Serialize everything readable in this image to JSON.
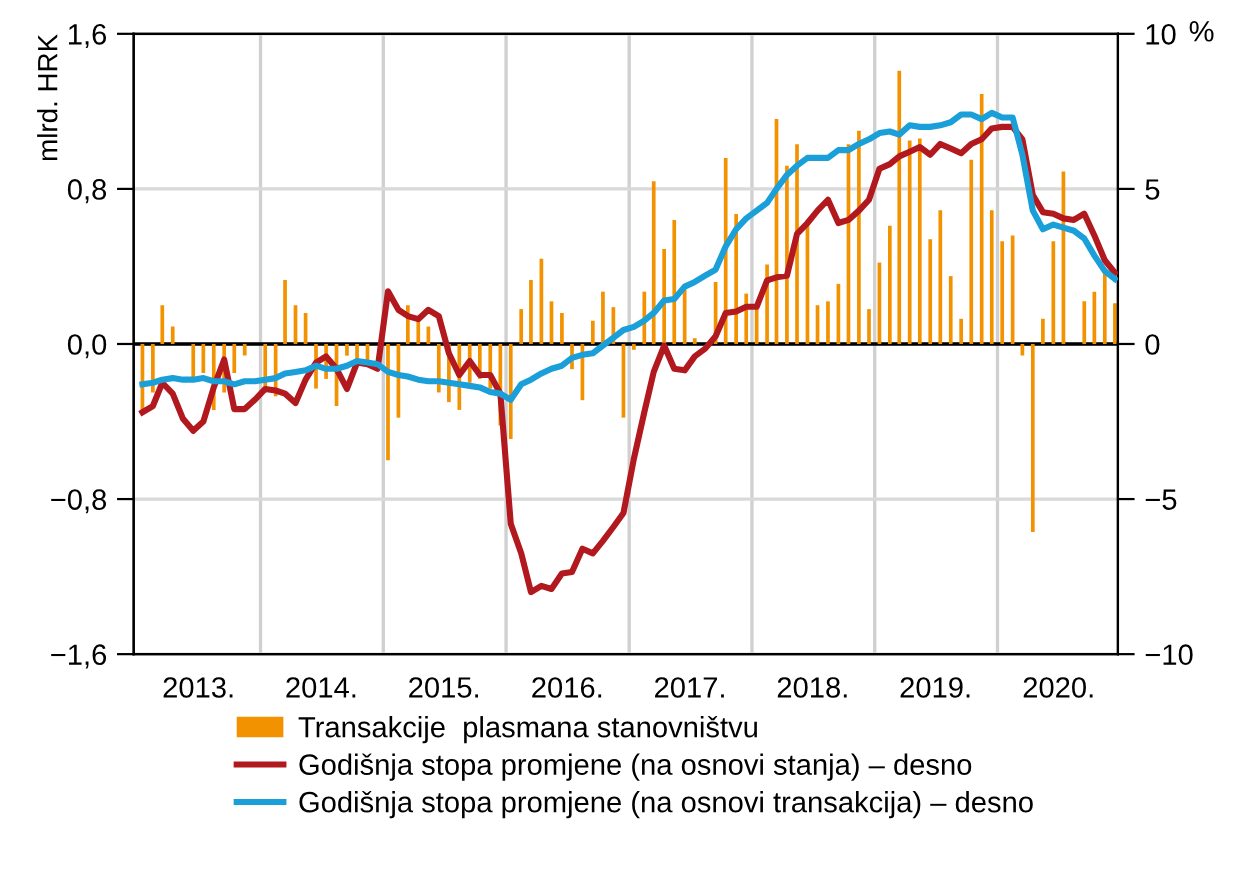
{
  "chart_data": {
    "type": "bar",
    "ylabel": "mlrd. HRK",
    "y2label": "%",
    "x": [
      "2013-01-15",
      "2013-02-15",
      "2013-03-15",
      "2013-04-15",
      "2013-05-15",
      "2013-06-15",
      "2013-07-15",
      "2013-08-15",
      "2013-09-15",
      "2013-10-15",
      "2013-11-15",
      "2013-12-15",
      "2014-01-15",
      "2014-02-15",
      "2014-03-15",
      "2014-04-15",
      "2014-05-15",
      "2014-06-15",
      "2014-07-15",
      "2014-08-15",
      "2014-09-15",
      "2014-10-15",
      "2014-11-15",
      "2014-12-15",
      "2015-01-15",
      "2015-02-15",
      "2015-03-15",
      "2015-04-15",
      "2015-05-15",
      "2015-06-15",
      "2015-07-15",
      "2015-08-15",
      "2015-09-15",
      "2015-10-15",
      "2015-11-15",
      "2015-12-15",
      "2016-01-15",
      "2016-02-15",
      "2016-03-15",
      "2016-04-15",
      "2016-05-15",
      "2016-06-15",
      "2016-07-15",
      "2016-08-15",
      "2016-09-15",
      "2016-10-15",
      "2016-11-15",
      "2016-12-15",
      "2017-01-15",
      "2017-02-15",
      "2017-03-15",
      "2017-04-15",
      "2017-05-15",
      "2017-06-15",
      "2017-07-15",
      "2017-08-15",
      "2017-09-15",
      "2017-10-15",
      "2017-11-15",
      "2017-12-15",
      "2018-01-15",
      "2018-02-15",
      "2018-03-15",
      "2018-04-15",
      "2018-05-15",
      "2018-06-15",
      "2018-07-15",
      "2018-08-15",
      "2018-09-15",
      "2018-10-15",
      "2018-11-15",
      "2018-12-15",
      "2019-01-15",
      "2019-02-15",
      "2019-03-15",
      "2019-04-15",
      "2019-05-15",
      "2019-06-15",
      "2019-07-15",
      "2019-08-15",
      "2019-09-15",
      "2019-10-15",
      "2019-11-15",
      "2019-12-15",
      "2020-01-15",
      "2020-02-15",
      "2020-03-15",
      "2020-04-15",
      "2020-05-15",
      "2020-06-15",
      "2020-07-15",
      "2020-08-15",
      "2020-09-15",
      "2020-10-15",
      "2020-11-15",
      "2020-12-15"
    ],
    "series": [
      {
        "name": "Transakcije  plasmana stanovništvu",
        "color": "#f39200",
        "values": [
          -0.34,
          -0.25,
          0.2,
          0.09,
          0,
          -0.17,
          -0.15,
          -0.34,
          -0.25,
          -0.15,
          -0.06,
          0,
          -0.25,
          -0.27,
          0.33,
          0.2,
          0.16,
          -0.23,
          -0.18,
          -0.32,
          -0.06,
          -0.1,
          -0.1,
          null,
          -0.6,
          -0.38,
          0.2,
          0.13,
          0.09,
          -0.25,
          -0.3,
          -0.34,
          -0.2,
          -0.18,
          -0.23,
          -0.42,
          -0.49,
          0.18,
          0.33,
          0.44,
          0.22,
          0.16,
          -0.13,
          -0.29,
          0.12,
          0.27,
          0.19,
          -0.38,
          -0.03,
          0.27,
          0.84,
          0.49,
          0.64,
          0.29,
          0.03,
          null,
          0.32,
          0.96,
          0.67,
          0.26,
          0.19,
          0.41,
          1.16,
          0.92,
          1.03,
          0.61,
          0.2,
          0.22,
          0.31,
          1.03,
          1.1,
          0.18,
          0.42,
          0.61,
          1.41,
          1.05,
          1.06,
          0.54,
          0.69,
          0.35,
          0.13,
          0.95,
          1.29,
          0.69,
          0.53,
          0.56,
          -0.06,
          -0.97,
          0.13,
          0.53,
          0.89,
          0,
          0.22,
          0.27,
          0.39,
          0.21
        ]
      },
      {
        "name": "Godišnja stopa promjene (na osnovi stanja) – desno",
        "type": "line",
        "axis": "y2",
        "color": "#b2191f",
        "values": [
          -2.2,
          -2.0,
          -1.25,
          -1.6,
          -2.4,
          -2.8,
          -2.5,
          -1.4,
          -0.5,
          -2.1,
          -2.1,
          -1.8,
          -1.45,
          -1.5,
          -1.6,
          -1.9,
          -1.15,
          -0.6,
          -0.4,
          -0.8,
          -1.45,
          -0.6,
          -0.65,
          -0.8,
          1.7,
          1.1,
          0.9,
          0.8,
          1.1,
          0.9,
          -0.3,
          -1.0,
          -0.55,
          -1.0,
          -1.0,
          -1.6,
          -5.8,
          -6.75,
          -8.0,
          -7.8,
          -7.9,
          -7.4,
          -7.35,
          -6.6,
          -6.75,
          -6.35,
          -5.9,
          -5.45,
          -3.7,
          -2.2,
          -0.9,
          -0.05,
          -0.8,
          -0.85,
          -0.4,
          -0.15,
          0.25,
          1.0,
          1.05,
          1.2,
          1.2,
          2.05,
          2.15,
          2.2,
          3.55,
          3.9,
          4.3,
          4.65,
          3.9,
          4.0,
          4.3,
          4.65,
          5.65,
          5.8,
          6.05,
          6.2,
          6.35,
          6.1,
          6.45,
          6.3,
          6.15,
          6.45,
          6.6,
          6.95,
          7.0,
          7.0,
          6.6,
          4.8,
          4.25,
          4.2,
          4.05,
          4.0,
          4.2,
          3.5,
          2.7,
          2.3
        ]
      },
      {
        "name": "Godišnja stopa promjene (na osnovi transakcija) – desno",
        "type": "line",
        "axis": "y2",
        "color": "#1a9fd9",
        "values": [
          -1.3,
          -1.25,
          -1.15,
          -1.1,
          -1.15,
          -1.15,
          -1.1,
          -1.2,
          -1.2,
          -1.3,
          -1.2,
          -1.2,
          -1.15,
          -1.1,
          -0.95,
          -0.9,
          -0.85,
          -0.7,
          -0.8,
          -0.8,
          -0.7,
          -0.55,
          -0.6,
          -0.65,
          -0.9,
          -1.0,
          -1.05,
          -1.15,
          -1.2,
          -1.2,
          -1.25,
          -1.3,
          -1.35,
          -1.4,
          -1.55,
          -1.6,
          -1.8,
          -1.3,
          -1.15,
          -0.95,
          -0.8,
          -0.7,
          -0.45,
          -0.35,
          -0.3,
          -0.05,
          0.2,
          0.45,
          0.55,
          0.75,
          1.0,
          1.4,
          1.45,
          1.85,
          2.0,
          2.2,
          2.4,
          3.15,
          3.7,
          4.05,
          4.3,
          4.55,
          5.0,
          5.45,
          5.75,
          6.0,
          6.0,
          6.0,
          6.25,
          6.25,
          6.45,
          6.6,
          6.8,
          6.85,
          6.75,
          7.05,
          7.0,
          7.0,
          7.05,
          7.15,
          7.4,
          7.4,
          7.25,
          7.45,
          7.3,
          7.3,
          6.1,
          4.3,
          3.7,
          3.85,
          3.75,
          3.65,
          3.4,
          2.85,
          2.35,
          2.1
        ]
      }
    ],
    "xlim": [
      "2012-12-20",
      "2020-12-24"
    ],
    "xticks": [
      {
        "value": "2013-07-01",
        "label": "2013."
      },
      {
        "value": "2014-01-01",
        "label": null
      },
      {
        "value": "2014-07-01",
        "label": "2014."
      },
      {
        "value": "2015-01-01",
        "label": null
      },
      {
        "value": "2015-07-01",
        "label": "2015."
      },
      {
        "value": "2016-01-01",
        "label": null
      },
      {
        "value": "2016-07-01",
        "label": "2016."
      },
      {
        "value": "2017-01-01",
        "label": null
      },
      {
        "value": "2017-07-01",
        "label": "2017."
      },
      {
        "value": "2018-01-01",
        "label": null
      },
      {
        "value": "2018-07-01",
        "label": "2018."
      },
      {
        "value": "2019-01-01",
        "label": null
      },
      {
        "value": "2019-07-01",
        "label": "2019."
      },
      {
        "value": "2020-01-01",
        "label": null
      },
      {
        "value": "2020-07-01",
        "label": "2020."
      }
    ],
    "ylim": [
      -1.6,
      1.6
    ],
    "yticks": [
      {
        "value": -1.6,
        "label": "−1,6"
      },
      {
        "value": -0.8,
        "label": "−0,8"
      },
      {
        "value": 0,
        "label": "0,0"
      },
      {
        "value": 0.8,
        "label": "0,8"
      },
      {
        "value": 1.6,
        "label": "1,6"
      }
    ],
    "y2lim": [
      -10,
      10
    ],
    "y2ticks": [
      {
        "value": -10,
        "label": "−10"
      },
      {
        "value": -5,
        "label": "−5"
      },
      0,
      5,
      10
    ],
    "ref_lines": [
      {
        "axis": "y",
        "value": 0,
        "color": "#000000"
      }
    ],
    "grid": true,
    "legend": "bottom",
    "line_style": "solid"
  }
}
